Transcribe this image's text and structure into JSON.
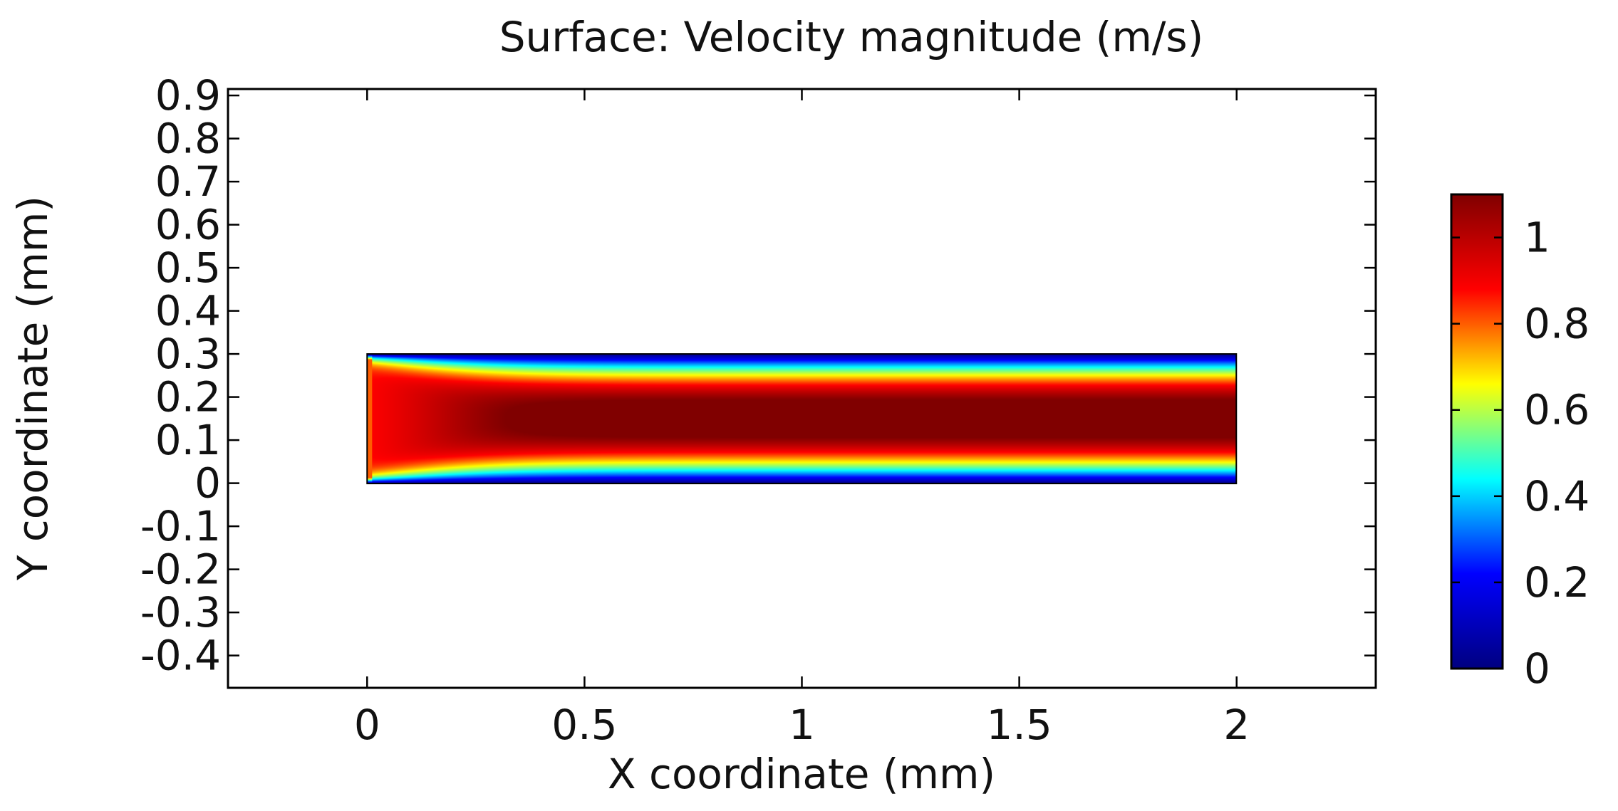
{
  "chart_data": {
    "type": "heatmap",
    "title": "Surface: Velocity magnitude (m/s)",
    "xlabel": "X coordinate (mm)",
    "ylabel": "Y coordinate (mm)",
    "xlim": [
      -0.32,
      2.32
    ],
    "ylim": [
      -0.475,
      0.915
    ],
    "x_ticks": [
      0,
      0.5,
      1,
      1.5,
      2
    ],
    "x_tick_labels": [
      "0",
      "0.5",
      "1",
      "1.5",
      "2"
    ],
    "y_ticks": [
      0.9,
      0.8,
      0.7,
      0.6,
      0.5,
      0.4,
      0.3,
      0.2,
      0.1,
      0,
      -0.1,
      -0.2,
      -0.3,
      -0.4
    ],
    "y_tick_labels": [
      "0.9",
      "0.8",
      "0.7",
      "0.6",
      "0.5",
      "0.4",
      "0.3",
      "0.2",
      "0.1",
      "0",
      "-0.1",
      "-0.2",
      "-0.3",
      "-0.4"
    ],
    "domain": {
      "x": [
        0,
        2
      ],
      "y": [
        0,
        0.3
      ]
    },
    "field": {
      "quantity": "Velocity magnitude",
      "unit": "m/s",
      "inlet_velocity": 0.8,
      "max_velocity": 1.1,
      "wall_velocity": 0,
      "developed_profile": "parabolic",
      "entrance_length_mm": 0.45
    },
    "colorbar": {
      "min": 0,
      "max": 1.1,
      "ticks": [
        0,
        0.2,
        0.4,
        0.6,
        0.8,
        1
      ],
      "tick_labels": [
        "0",
        "0.2",
        "0.4",
        "0.6",
        "0.8",
        "1"
      ],
      "colormap": "rainbow",
      "colormap_stops": [
        "#000080",
        "#0000ff",
        "#00ffff",
        "#ffff00",
        "#ff0000",
        "#800000"
      ]
    },
    "grid": false
  }
}
